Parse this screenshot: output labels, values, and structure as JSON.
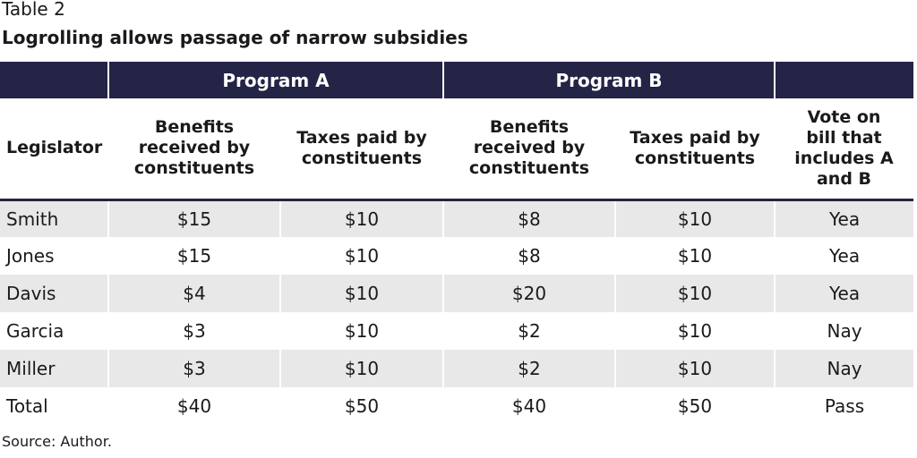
{
  "table_label": "Table 2",
  "title": "Logrolling allows passage of narrow subsidies",
  "group_headers": {
    "program_a": "Program A",
    "program_b": "Program B"
  },
  "column_headers": {
    "legislator": "Legislator",
    "a_benefits": "Benefits received by constituents",
    "a_taxes": "Taxes paid by constituents",
    "b_benefits": "Benefits received by constituents",
    "b_taxes": "Taxes paid by constituents",
    "vote": "Vote on bill that includes A and B"
  },
  "rows": [
    {
      "legislator": "Smith",
      "a_benefits": "$15",
      "a_taxes": "$10",
      "b_benefits": "$8",
      "b_taxes": "$10",
      "vote": "Yea"
    },
    {
      "legislator": "Jones",
      "a_benefits": "$15",
      "a_taxes": "$10",
      "b_benefits": "$8",
      "b_taxes": "$10",
      "vote": "Yea"
    },
    {
      "legislator": "Davis",
      "a_benefits": "$4",
      "a_taxes": "$10",
      "b_benefits": "$20",
      "b_taxes": "$10",
      "vote": "Yea"
    },
    {
      "legislator": "Garcia",
      "a_benefits": "$3",
      "a_taxes": "$10",
      "b_benefits": "$2",
      "b_taxes": "$10",
      "vote": "Nay"
    },
    {
      "legislator": "Miller",
      "a_benefits": "$3",
      "a_taxes": "$10",
      "b_benefits": "$2",
      "b_taxes": "$10",
      "vote": "Nay"
    },
    {
      "legislator": "Total",
      "a_benefits": "$40",
      "a_taxes": "$50",
      "b_benefits": "$40",
      "b_taxes": "$50",
      "vote": "Pass"
    }
  ],
  "source": "Source: Author.",
  "colors": {
    "header_background": "#242446",
    "stripe": "#e8e8e8"
  }
}
